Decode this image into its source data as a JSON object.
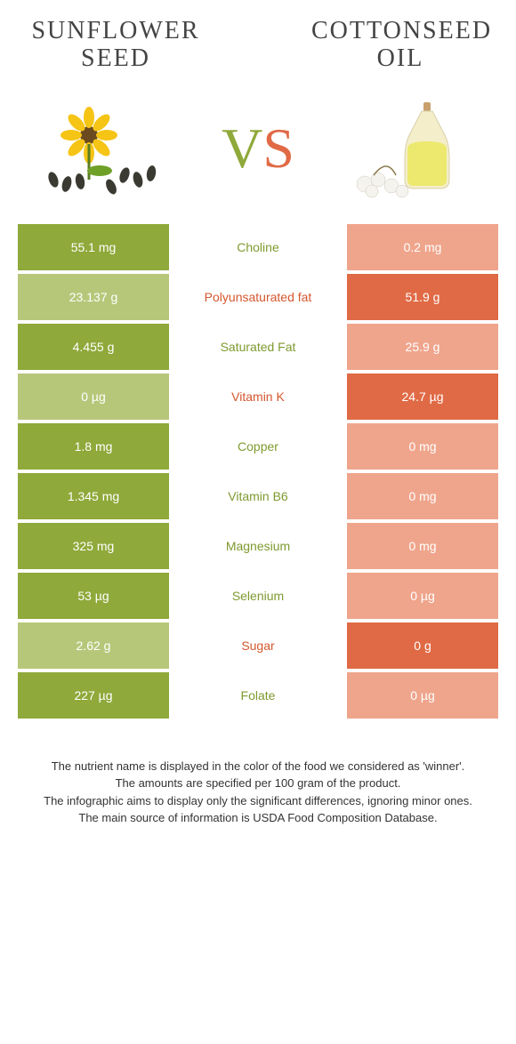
{
  "colors": {
    "left_full": "#8fa93a",
    "left_light": "#b7c77a",
    "right_full": "#e06a45",
    "right_light": "#efa58c",
    "mid_green": "#7f9a2f",
    "mid_orange": "#d4572f"
  },
  "header": {
    "left_title": "Sunflower seed",
    "right_title": "Cottonseed oil",
    "vs_v": "V",
    "vs_s": "S"
  },
  "rows": [
    {
      "left": {
        "v": "55.1 mg",
        "shade": "full"
      },
      "label": "Choline",
      "winner": "left",
      "right": {
        "v": "0.2 mg",
        "shade": "light"
      }
    },
    {
      "left": {
        "v": "23.137 g",
        "shade": "light"
      },
      "label": "Polyunsaturated fat",
      "winner": "right",
      "right": {
        "v": "51.9 g",
        "shade": "full"
      }
    },
    {
      "left": {
        "v": "4.455 g",
        "shade": "full"
      },
      "label": "Saturated Fat",
      "winner": "left",
      "right": {
        "v": "25.9 g",
        "shade": "light"
      }
    },
    {
      "left": {
        "v": "0 µg",
        "shade": "light"
      },
      "label": "Vitamin K",
      "winner": "right",
      "right": {
        "v": "24.7 µg",
        "shade": "full"
      }
    },
    {
      "left": {
        "v": "1.8 mg",
        "shade": "full"
      },
      "label": "Copper",
      "winner": "left",
      "right": {
        "v": "0 mg",
        "shade": "light"
      }
    },
    {
      "left": {
        "v": "1.345 mg",
        "shade": "full"
      },
      "label": "Vitamin B6",
      "winner": "left",
      "right": {
        "v": "0 mg",
        "shade": "light"
      }
    },
    {
      "left": {
        "v": "325 mg",
        "shade": "full"
      },
      "label": "Magnesium",
      "winner": "left",
      "right": {
        "v": "0 mg",
        "shade": "light"
      }
    },
    {
      "left": {
        "v": "53 µg",
        "shade": "full"
      },
      "label": "Selenium",
      "winner": "left",
      "right": {
        "v": "0 µg",
        "shade": "light"
      }
    },
    {
      "left": {
        "v": "2.62 g",
        "shade": "light"
      },
      "label": "Sugar",
      "winner": "right",
      "right": {
        "v": "0 g",
        "shade": "full"
      }
    },
    {
      "left": {
        "v": "227 µg",
        "shade": "full"
      },
      "label": "Folate",
      "winner": "left",
      "right": {
        "v": "0 µg",
        "shade": "light"
      }
    }
  ],
  "footer": {
    "l1": "The nutrient name is displayed in the color of the food we considered as 'winner'.",
    "l2": "The amounts are specified per 100 gram of the product.",
    "l3": "The infographic aims to display only the significant differences, ignoring minor ones.",
    "l4": "The main source of information is USDA Food Composition Database."
  }
}
